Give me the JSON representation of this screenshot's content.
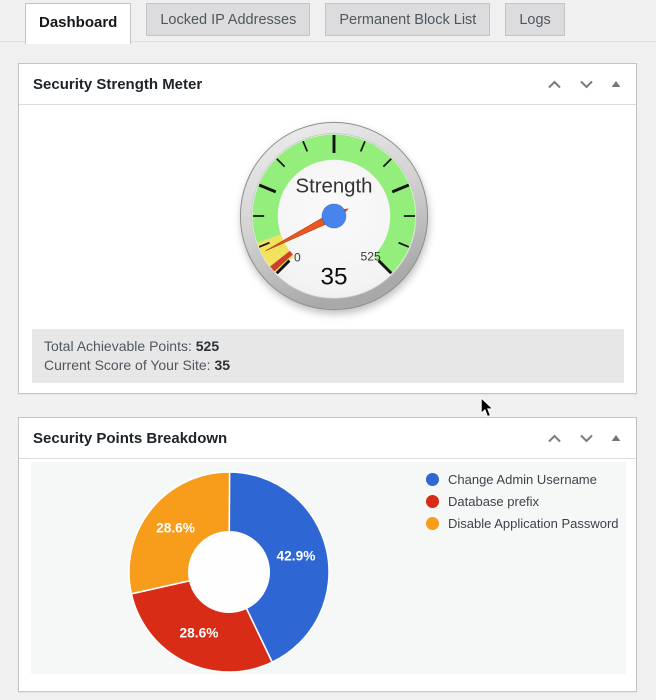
{
  "tabs": [
    {
      "label": "Dashboard",
      "active": true
    },
    {
      "label": "Locked IP Addresses",
      "active": false
    },
    {
      "label": "Permanent Block List",
      "active": false
    },
    {
      "label": "Logs",
      "active": false
    }
  ],
  "panels": {
    "strength_meter": {
      "title": "Security Strength Meter",
      "summary": {
        "total_label": "Total Achievable Points:",
        "total_value": "525",
        "score_label": "Current Score of Your Site:",
        "score_value": "35"
      }
    },
    "points_breakdown": {
      "title": "Security Points Breakdown"
    }
  },
  "icons": {
    "panel_controls": [
      "chevron-up-icon",
      "chevron-down-icon",
      "collapse-toggle-icon"
    ],
    "pointer": "mouse-cursor-icon"
  },
  "colors": {
    "page_bg": "#f0f0f1",
    "panel_bg": "#ffffff",
    "panel_border": "#c3c4c7",
    "chart_area_bg": "#f6f7f7",
    "info_box_bg": "#e7e7e7",
    "tab_inactive_bg": "#dcdcde",
    "legend_text": "#3c434a",
    "control_icon": "#787c82"
  },
  "chart_data": [
    {
      "type": "gauge",
      "title": "Strength",
      "min": 0,
      "max": 525,
      "value": 35,
      "min_label": "0",
      "max_label": "525",
      "value_label": "35",
      "start_angle": 135,
      "sweep": 270,
      "major_ticks": [
        0,
        131.25,
        262.5,
        393.75,
        525
      ],
      "minor_ticks_per_interval": 2,
      "zones": [
        {
          "from": 0,
          "to": 50,
          "color": "#f2e35f"
        },
        {
          "from": 4,
          "to": 13,
          "color": "#cc4030"
        },
        {
          "from": 50,
          "to": 525,
          "color": "#93ee7c"
        }
      ],
      "needle_color": "#e8581f",
      "hub_color": "#4684ee"
    },
    {
      "type": "pie",
      "donut_hole_ratio": 0.4,
      "start_angle_deg": -90,
      "direction": "clockwise",
      "legend_position": "right",
      "slices": [
        {
          "label": "Change Admin Username",
          "pct": 42.9,
          "pct_label": "42.9%",
          "color": "#2e66d3"
        },
        {
          "label": "Database prefix",
          "pct": 28.6,
          "pct_label": "28.6%",
          "color": "#d92c16"
        },
        {
          "label": "Disable Application Password",
          "pct": 28.6,
          "pct_label": "28.6%",
          "color": "#f89c1b"
        }
      ]
    }
  ]
}
